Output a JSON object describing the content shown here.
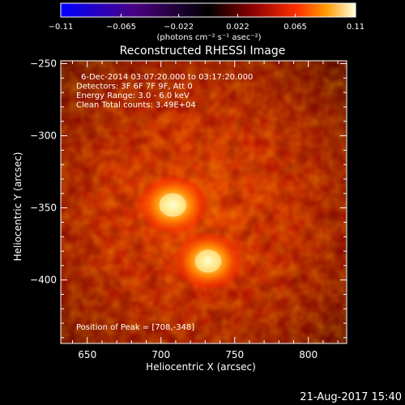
{
  "colorbar": {
    "ticks": [
      "-0.11",
      "-0.065",
      "-0.022",
      "0.022",
      "0.065",
      "0.11"
    ],
    "unit_label": "(photons cm⁻² s⁻¹ asec⁻²)"
  },
  "chart_data": {
    "type": "heatmap",
    "title": "Reconstructed RHESSI Image",
    "info_lines": [
      "6-Dec-2014 03:07:20.000 to 03:17:20.000",
      "Detectors: 3F 6F 7F 9F, Att 0",
      "Energy Range: 3.0 - 6.0 keV",
      "Clean     Total counts: 3.49E+04"
    ],
    "peak_label": "Position of Peak = [708,-348]",
    "xlabel": "Heliocentric X (arcsec)",
    "ylabel": "Heliocentric Y (arcsec)",
    "xlim": [
      632,
      826
    ],
    "ylim": [
      -444,
      -248
    ],
    "x_ticks": [
      "650",
      "700",
      "750",
      "800"
    ],
    "y_ticks": [
      "-250",
      "-300",
      "-350",
      "-400"
    ],
    "sources": [
      {
        "x": 708,
        "y": -348,
        "intensity": 1.0
      },
      {
        "x": 732,
        "y": -387,
        "intensity": 0.92
      }
    ],
    "colormap": "red-temperature",
    "value_range": [
      -0.11,
      0.11
    ]
  },
  "timestamp": "21-Aug-2017 15:40"
}
